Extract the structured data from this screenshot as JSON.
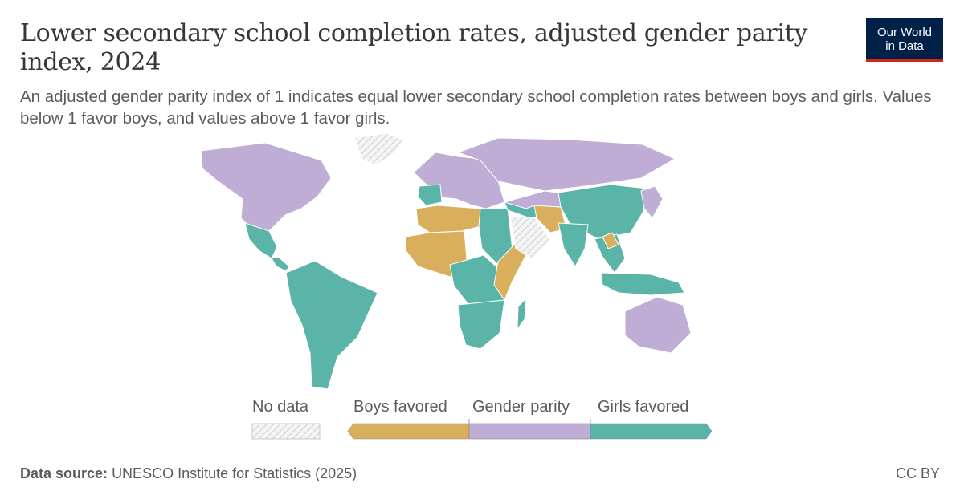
{
  "header": {
    "title": "Lower secondary school completion rates, adjusted gender parity index, 2024",
    "subtitle": "An adjusted gender parity index of 1 indicates equal lower secondary school completion rates between boys and girls. Values below 1 favor boys, and values above 1 favor girls."
  },
  "logo": {
    "line1": "Our World",
    "line2": "in Data"
  },
  "colors": {
    "boys_favored": "#d9ae5c",
    "gender_parity": "#bfadd6",
    "girls_favored": "#5ab4a7",
    "no_data": "#eeeeee",
    "border": "#ffffff"
  },
  "legend": {
    "no_data": "No data",
    "categories": [
      "Boys favored",
      "Gender parity",
      "Girls favored"
    ]
  },
  "regions": [
    {
      "name": "North America",
      "category": "Gender parity"
    },
    {
      "name": "Greenland",
      "category": "No data"
    },
    {
      "name": "Mexico",
      "category": "Girls favored"
    },
    {
      "name": "Central America",
      "category": "Girls favored"
    },
    {
      "name": "South America",
      "category": "Girls favored"
    },
    {
      "name": "Europe",
      "category": "Gender parity"
    },
    {
      "name": "Russia",
      "category": "Gender parity"
    },
    {
      "name": "Iberia",
      "category": "Girls favored"
    },
    {
      "name": "North Africa",
      "category": "Boys favored"
    },
    {
      "name": "Egypt & Sudan",
      "category": "Girls favored"
    },
    {
      "name": "West Africa",
      "category": "Boys favored"
    },
    {
      "name": "Central Africa",
      "category": "Girls favored"
    },
    {
      "name": "East Africa",
      "category": "Boys favored"
    },
    {
      "name": "Southern Africa",
      "category": "Girls favored"
    },
    {
      "name": "Madagascar",
      "category": "Girls favored"
    },
    {
      "name": "Arabian Peninsula",
      "category": "No data"
    },
    {
      "name": "Middle East",
      "category": "Girls favored"
    },
    {
      "name": "Afghanistan & Pakistan",
      "category": "Boys favored"
    },
    {
      "name": "Central Asia",
      "category": "Gender parity"
    },
    {
      "name": "China",
      "category": "Girls favored"
    },
    {
      "name": "India",
      "category": "Girls favored"
    },
    {
      "name": "Southeast Asia",
      "category": "Girls favored"
    },
    {
      "name": "Laos",
      "category": "Boys favored"
    },
    {
      "name": "Indonesia",
      "category": "Girls favored"
    },
    {
      "name": "Japan & Korea",
      "category": "Gender parity"
    },
    {
      "name": "Australia",
      "category": "Gender parity"
    }
  ],
  "footer": {
    "source_label": "Data source:",
    "source_text": "UNESCO Institute for Statistics (2025)",
    "license": "CC BY"
  }
}
